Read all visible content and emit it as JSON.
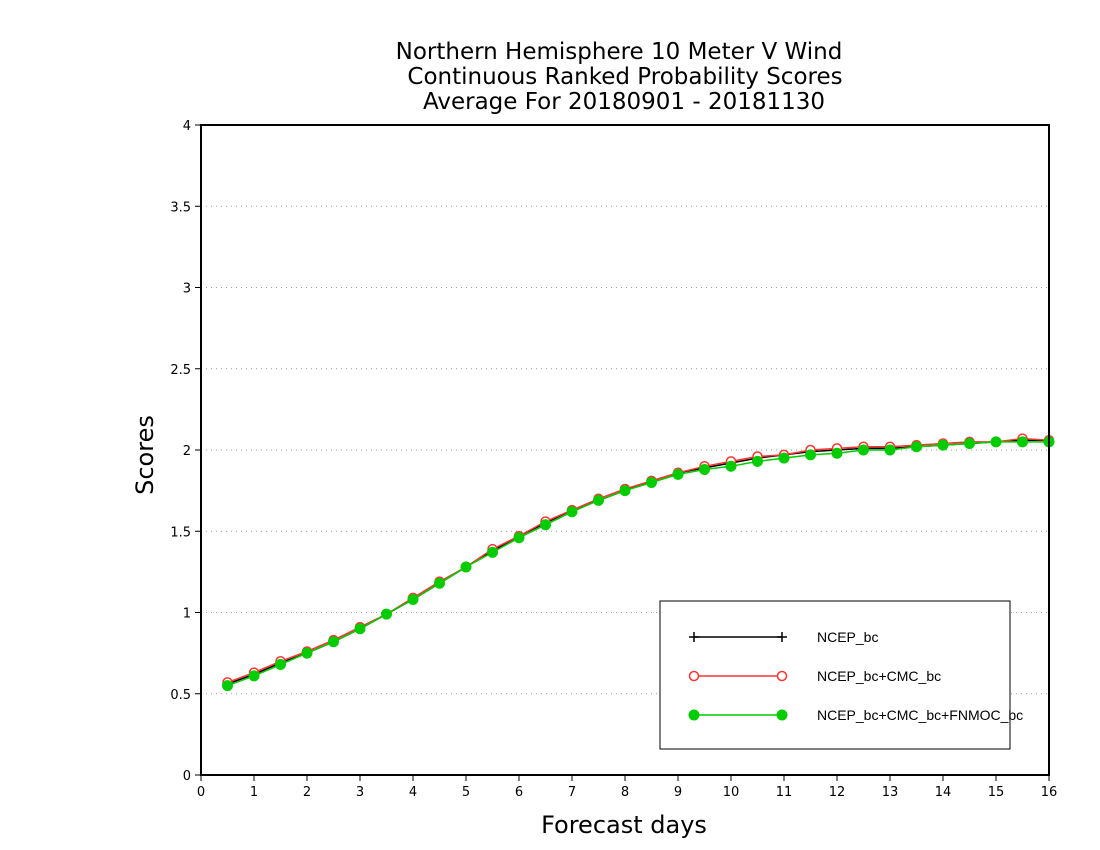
{
  "chart_data": {
    "type": "line",
    "title_lines": [
      "Northern Hemisphere 10 Meter V Wind",
      "Continuous Ranked Probability Scores",
      "Average For 20180901 - 20181130"
    ],
    "xlabel": "Forecast days",
    "ylabel": "Scores",
    "xlim": [
      0,
      16
    ],
    "ylim": [
      0,
      4
    ],
    "xticks": [
      "0",
      "1",
      "2",
      "3",
      "4",
      "5",
      "6",
      "7",
      "8",
      "9",
      "10",
      "11",
      "12",
      "13",
      "14",
      "15",
      "16"
    ],
    "yticks": [
      "0",
      "0.5",
      "1",
      "1.5",
      "2",
      "2.5",
      "3",
      "3.5",
      "4"
    ],
    "grid": "horizontal-dotted",
    "legend_position": "bottom-right",
    "x": [
      0.5,
      1,
      1.5,
      2,
      2.5,
      3,
      3.5,
      4,
      4.5,
      5,
      5.5,
      6,
      6.5,
      7,
      7.5,
      8,
      8.5,
      9,
      9.5,
      10,
      10.5,
      11,
      11.5,
      12,
      12.5,
      13,
      13.5,
      14,
      14.5,
      15,
      15.5,
      16
    ],
    "series": [
      {
        "name": "NCEP_bc",
        "color": "#000000",
        "marker": "plus",
        "values": [
          0.56,
          0.62,
          0.69,
          0.75,
          0.82,
          0.9,
          0.99,
          1.08,
          1.18,
          1.28,
          1.38,
          1.47,
          1.55,
          1.63,
          1.69,
          1.75,
          1.81,
          1.86,
          1.89,
          1.92,
          1.95,
          1.97,
          1.99,
          2.0,
          2.01,
          2.01,
          2.02,
          2.03,
          2.04,
          2.05,
          2.06,
          2.06
        ]
      },
      {
        "name": "NCEP_bc+CMC_bc",
        "color": "#ff3333",
        "marker": "open-circle",
        "values": [
          0.57,
          0.63,
          0.7,
          0.76,
          0.83,
          0.91,
          0.99,
          1.09,
          1.19,
          1.28,
          1.39,
          1.47,
          1.56,
          1.63,
          1.7,
          1.76,
          1.81,
          1.86,
          1.9,
          1.93,
          1.96,
          1.97,
          2.0,
          2.01,
          2.02,
          2.02,
          2.03,
          2.04,
          2.05,
          2.05,
          2.07,
          2.06
        ]
      },
      {
        "name": "NCEP_bc+CMC_bc+FNMOC_bc",
        "color": "#00cc00",
        "marker": "filled-circle",
        "values": [
          0.55,
          0.61,
          0.68,
          0.75,
          0.82,
          0.9,
          0.99,
          1.08,
          1.18,
          1.28,
          1.37,
          1.46,
          1.54,
          1.62,
          1.69,
          1.75,
          1.8,
          1.85,
          1.88,
          1.9,
          1.93,
          1.95,
          1.97,
          1.98,
          2.0,
          2.0,
          2.02,
          2.03,
          2.04,
          2.05,
          2.05,
          2.05
        ]
      }
    ]
  }
}
